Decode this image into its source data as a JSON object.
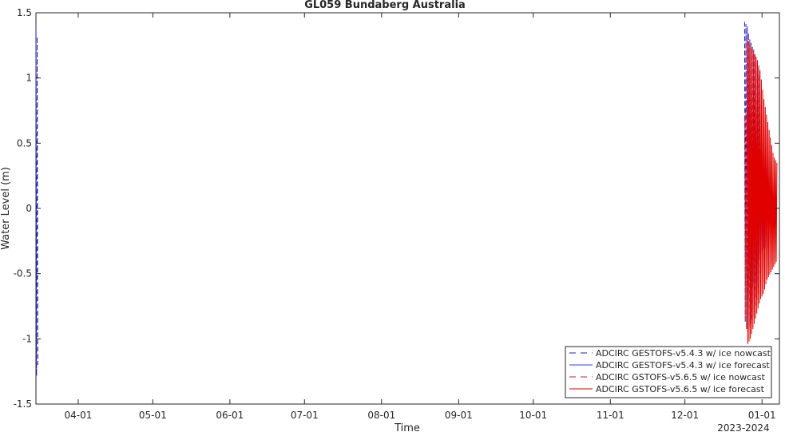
{
  "chart_data": {
    "type": "line",
    "title": "GL059 Bundaberg Australia",
    "xlabel": "Time",
    "ylabel": "Water Level (m)",
    "x_range_label": "2023-2024",
    "xlim": [
      "2023-03-15",
      "2024-01-08"
    ],
    "ylim": [
      -1.5,
      1.5
    ],
    "xticks": [
      {
        "date": "2023-04-01",
        "label": "04-01"
      },
      {
        "date": "2023-05-01",
        "label": "05-01"
      },
      {
        "date": "2023-06-01",
        "label": "06-01"
      },
      {
        "date": "2023-07-01",
        "label": "07-01"
      },
      {
        "date": "2023-08-01",
        "label": "08-01"
      },
      {
        "date": "2023-09-01",
        "label": "09-01"
      },
      {
        "date": "2023-10-01",
        "label": "10-01"
      },
      {
        "date": "2023-11-01",
        "label": "11-01"
      },
      {
        "date": "2023-12-01",
        "label": "12-01"
      },
      {
        "date": "2024-01-01",
        "label": "01-01"
      }
    ],
    "yticks": [
      {
        "value": 1.5,
        "label": "1.5"
      },
      {
        "value": 1,
        "label": "1"
      },
      {
        "value": 0.5,
        "label": "0.5"
      },
      {
        "value": 0,
        "label": "0"
      },
      {
        "value": -0.5,
        "label": "-0.5"
      },
      {
        "value": -1,
        "label": "-1"
      },
      {
        "value": -1.5,
        "label": "-1.5"
      }
    ],
    "grid": false,
    "legend_position": "bottom-right",
    "series": [
      {
        "name": "ADCIRC GESTOFS-v5.4.3 w/ ice nowcast",
        "color": "#1f1fbf",
        "dash": "dashed",
        "segments": [
          {
            "start": "2023-03-15",
            "end": "2023-03-15 18:00",
            "envelope": [
              [
                -1.3,
                1.4
              ],
              [
                -1.25,
                1.35
              ],
              [
                -1.3,
                1.4
              ],
              [
                -1.2,
                1.3
              ],
              [
                -1.25,
                1.35
              ],
              [
                -1.2,
                1.3
              ]
            ]
          },
          {
            "start": "2023-12-25",
            "end": "2023-12-31",
            "envelope": [
              [
                -0.85,
                1.43
              ],
              [
                -0.95,
                1.4
              ],
              [
                -0.9,
                1.3
              ],
              [
                -0.85,
                1.25
              ],
              [
                -0.7,
                1.2
              ],
              [
                -0.6,
                1.1
              ],
              [
                -0.5,
                1.0
              ]
            ]
          }
        ]
      },
      {
        "name": "ADCIRC GESTOFS-v5.4.3 w/ ice forecast",
        "color": "#3a3aff",
        "dash": "solid",
        "segments": [
          {
            "start": "2023-12-26",
            "end": "2024-01-03",
            "envelope": [
              [
                -0.7,
                0.8
              ],
              [
                -0.65,
                0.75
              ],
              [
                -0.6,
                0.7
              ],
              [
                -0.55,
                0.6
              ],
              [
                -0.4,
                0.5
              ],
              [
                -0.35,
                0.45
              ],
              [
                -0.3,
                0.4
              ],
              [
                -0.3,
                0.3
              ]
            ]
          }
        ]
      },
      {
        "name": "ADCIRC GSTOFS-v5.6.5 w/ ice nowcast",
        "color": "#d02020",
        "dash": "dashed",
        "segments": [
          {
            "start": "2023-12-25",
            "end": "2023-12-31",
            "envelope": [
              [
                -0.8,
                0.7
              ],
              [
                -0.95,
                0.75
              ],
              [
                -0.9,
                0.65
              ],
              [
                -0.85,
                0.6
              ],
              [
                -0.8,
                0.55
              ],
              [
                -0.7,
                0.5
              ],
              [
                -0.6,
                0.45
              ]
            ]
          }
        ]
      },
      {
        "name": "ADCIRC GSTOFS-v5.6.5 w/ ice forecast",
        "color": "#e00000",
        "dash": "solid",
        "segments": [
          {
            "start": "2023-12-26",
            "end": "2024-01-07",
            "envelope": [
              [
                -1.05,
                1.3
              ],
              [
                -1.0,
                1.25
              ],
              [
                -0.9,
                1.2
              ],
              [
                -0.8,
                1.15
              ],
              [
                -0.7,
                1.05
              ],
              [
                -0.65,
                0.85
              ],
              [
                -0.55,
                0.7
              ],
              [
                -0.5,
                0.55
              ],
              [
                -0.45,
                0.4
              ],
              [
                -0.4,
                0.35
              ]
            ]
          }
        ]
      }
    ]
  }
}
